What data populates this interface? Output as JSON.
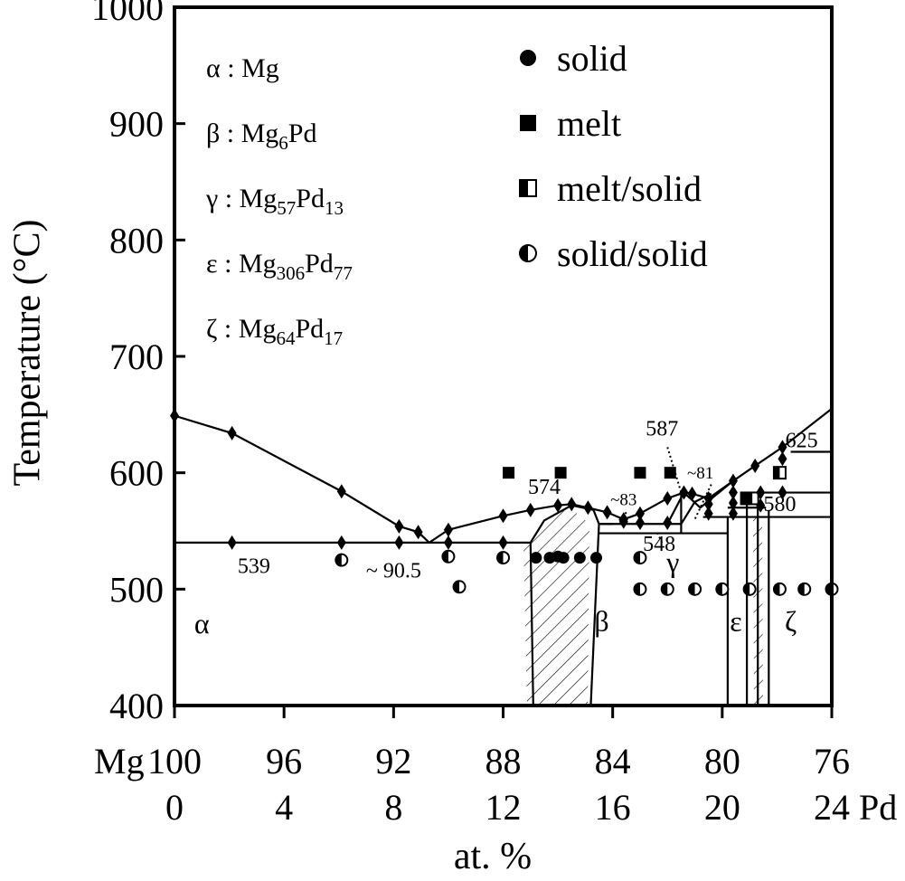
{
  "chart_data": {
    "type": "scatter",
    "title": "",
    "ylabel": "Temperature (°C)",
    "xlabel": "at. %",
    "x_axis_left_label": "Mg",
    "x_axis_right_label": "Pd",
    "x_unit": "at. % Pd",
    "xlim": [
      0,
      24
    ],
    "ylim": [
      400,
      1000
    ],
    "grid": false,
    "y_ticks": [
      "400",
      "500",
      "600",
      "700",
      "800",
      "900",
      "1000"
    ],
    "y_tick_values": [
      400,
      500,
      600,
      700,
      800,
      900,
      1000
    ],
    "x_ticks_mg": [
      "100",
      "96",
      "92",
      "88",
      "84",
      "80",
      "76"
    ],
    "x_ticks_pd": [
      "0",
      "4",
      "8",
      "12",
      "16",
      "20",
      "24"
    ],
    "x_tick_values": [
      0,
      4,
      8,
      12,
      16,
      20,
      24
    ],
    "phase_key": [
      {
        "symbol": "α",
        "formula": "Mg",
        "subs": []
      },
      {
        "symbol": "β",
        "formula": "Mg",
        "subs": [
          {
            "sub": "6",
            "after": "Pd"
          }
        ]
      },
      {
        "symbol": "γ",
        "formula": "Mg",
        "subs": [
          {
            "sub": "57",
            "after": "Pd"
          },
          {
            "sub": "13",
            "after": ""
          }
        ]
      },
      {
        "symbol": "ε",
        "formula": "Mg",
        "subs": [
          {
            "sub": "306",
            "after": "Pd"
          },
          {
            "sub": "77",
            "after": ""
          }
        ]
      },
      {
        "symbol": "ζ",
        "formula": "Mg",
        "subs": [
          {
            "sub": "64",
            "after": "Pd"
          },
          {
            "sub": "17",
            "after": ""
          }
        ]
      }
    ],
    "legend_position": "top-right",
    "legend": [
      {
        "marker": "circle-filled",
        "label": "solid"
      },
      {
        "marker": "square-filled",
        "label": "melt"
      },
      {
        "marker": "square-half",
        "label": "melt/solid"
      },
      {
        "marker": "circle-half",
        "label": "solid/solid"
      }
    ],
    "region_labels": [
      {
        "text": "α",
        "x": 1.0,
        "y": 462
      },
      {
        "text": "β",
        "x": 15.6,
        "y": 464
      },
      {
        "text": "γ",
        "x": 18.2,
        "y": 515
      },
      {
        "text": "ε",
        "x": 20.5,
        "y": 464
      },
      {
        "text": "ζ",
        "x": 22.5,
        "y": 464
      }
    ],
    "annotations": [
      {
        "text": "539",
        "x": 2.9,
        "y": 514
      },
      {
        "text": "~ 90.5",
        "x": 8.0,
        "y": 510
      },
      {
        "text": "574",
        "x": 13.5,
        "y": 582
      },
      {
        "text": "~83",
        "x": 16.4,
        "y": 572
      },
      {
        "text": "548",
        "x": 17.7,
        "y": 533
      },
      {
        "text": "587",
        "x": 17.8,
        "y": 632
      },
      {
        "text": "~81",
        "x": 19.2,
        "y": 595
      },
      {
        "text": "580",
        "x": 22.1,
        "y": 567
      },
      {
        "text": "625",
        "x": 22.9,
        "y": 622
      }
    ],
    "lines": [
      {
        "name": "liquidus",
        "points": [
          [
            0,
            649
          ],
          [
            2.1,
            634
          ],
          [
            6.1,
            584
          ],
          [
            8.2,
            554
          ],
          [
            8.9,
            549
          ],
          [
            9.3,
            540
          ],
          [
            10.0,
            551
          ],
          [
            12.0,
            563
          ],
          [
            13.0,
            568
          ],
          [
            14.0,
            572
          ],
          [
            14.5,
            573
          ],
          [
            15.1,
            570
          ],
          [
            15.8,
            566
          ],
          [
            16.4,
            560
          ],
          [
            17.0,
            565
          ],
          [
            18.0,
            578
          ],
          [
            18.6,
            583
          ],
          [
            18.9,
            582
          ],
          [
            19.5,
            578
          ],
          [
            20.4,
            593
          ],
          [
            21.2,
            606
          ],
          [
            22.2,
            622
          ],
          [
            24,
            655
          ]
        ]
      },
      {
        "name": "eutectic-539",
        "points": [
          [
            0,
            540
          ],
          [
            13.0,
            540
          ]
        ]
      },
      {
        "name": "beta-top",
        "points": [
          [
            13.0,
            540
          ],
          [
            13.5,
            559
          ],
          [
            14.5,
            572
          ],
          [
            15.3,
            568
          ],
          [
            15.5,
            556
          ],
          [
            16.0,
            556
          ]
        ]
      },
      {
        "name": "beta-left",
        "points": [
          [
            13.0,
            540
          ],
          [
            13.1,
            400
          ]
        ]
      },
      {
        "name": "beta-right",
        "points": [
          [
            15.5,
            556
          ],
          [
            15.2,
            400
          ]
        ]
      },
      {
        "name": "peritectic-548",
        "points": [
          [
            15.5,
            548
          ],
          [
            20.2,
            548
          ]
        ]
      },
      {
        "name": "line-556",
        "points": [
          [
            15.5,
            556
          ],
          [
            18.5,
            556
          ]
        ]
      },
      {
        "name": "gamma-top",
        "points": [
          [
            18.0,
            556
          ],
          [
            18.6,
            583
          ],
          [
            19.2,
            570
          ],
          [
            20.4,
            593
          ]
        ]
      },
      {
        "name": "gamma-left",
        "points": [
          [
            18.5,
            583
          ],
          [
            18.5,
            548
          ]
        ]
      },
      {
        "name": "line-562",
        "points": [
          [
            19.3,
            562
          ],
          [
            24,
            562
          ]
        ]
      },
      {
        "name": "line-570",
        "points": [
          [
            20.2,
            570
          ],
          [
            21.6,
            570
          ]
        ]
      },
      {
        "name": "line-580",
        "points": [
          [
            20.8,
            583
          ],
          [
            24,
            583
          ]
        ]
      },
      {
        "name": "line-625",
        "points": [
          [
            22.5,
            618
          ],
          [
            24,
            618
          ]
        ]
      },
      {
        "name": "eps-left",
        "points": [
          [
            20.2,
            562
          ],
          [
            20.2,
            400
          ]
        ]
      },
      {
        "name": "eps-line",
        "points": [
          [
            20.9,
            580
          ],
          [
            20.9,
            400
          ]
        ]
      },
      {
        "name": "zeta-left",
        "points": [
          [
            21.3,
            580
          ],
          [
            21.3,
            400
          ]
        ]
      },
      {
        "name": "zeta-right",
        "points": [
          [
            21.7,
            568
          ],
          [
            21.7,
            400
          ]
        ]
      },
      {
        "name": "gamma-inner",
        "points": [
          [
            18.5,
            556
          ],
          [
            19.0,
            575
          ],
          [
            19.6,
            582
          ]
        ]
      }
    ],
    "dotted_lines": [
      {
        "name": "leader-587",
        "points": [
          [
            18.0,
            622
          ],
          [
            18.5,
            583
          ]
        ]
      },
      {
        "name": "leader-83",
        "points": [
          [
            16.5,
            566
          ],
          [
            16.2,
            558
          ]
        ]
      },
      {
        "name": "leader-81",
        "points": [
          [
            19.6,
            590
          ],
          [
            19.0,
            560
          ]
        ]
      },
      {
        "name": "leader-548",
        "points": [
          [
            17.8,
            540
          ],
          [
            17.6,
            550
          ]
        ]
      }
    ],
    "series": [
      {
        "name": "solid",
        "marker": "circle-filled",
        "points": [
          [
            13.2,
            527
          ],
          [
            13.7,
            527
          ],
          [
            14.2,
            527
          ],
          [
            14.8,
            527
          ],
          [
            15.4,
            527
          ],
          [
            14.0,
            528
          ]
        ]
      },
      {
        "name": "melt",
        "marker": "square-filled",
        "points": [
          [
            12.2,
            600
          ],
          [
            14.1,
            600
          ],
          [
            17.0,
            600
          ],
          [
            18.1,
            600
          ]
        ]
      },
      {
        "name": "melt/solid",
        "marker": "square-half",
        "points": [
          [
            20.9,
            578
          ],
          [
            21.1,
            578
          ],
          [
            22.1,
            600
          ]
        ]
      },
      {
        "name": "solid/solid",
        "marker": "circle-half",
        "points": [
          [
            6.1,
            525
          ],
          [
            10.0,
            528
          ],
          [
            12.0,
            527
          ],
          [
            10.4,
            502
          ],
          [
            17.0,
            527
          ],
          [
            17.0,
            500
          ],
          [
            18.0,
            500
          ],
          [
            19.0,
            500
          ],
          [
            20.0,
            500
          ],
          [
            21.0,
            500
          ],
          [
            22.1,
            500
          ],
          [
            23.0,
            500
          ],
          [
            24.0,
            500
          ]
        ]
      },
      {
        "name": "dta",
        "marker": "diamond",
        "points": [
          [
            0,
            649
          ],
          [
            2.1,
            634
          ],
          [
            6.1,
            584
          ],
          [
            8.2,
            554
          ],
          [
            8.9,
            549
          ],
          [
            10.0,
            551
          ],
          [
            12.0,
            563
          ],
          [
            13.0,
            568
          ],
          [
            14.0,
            572
          ],
          [
            14.5,
            573
          ],
          [
            15.1,
            570
          ],
          [
            15.8,
            566
          ],
          [
            16.4,
            560
          ],
          [
            17.0,
            565
          ],
          [
            18.0,
            578
          ],
          [
            18.6,
            583
          ],
          [
            18.9,
            582
          ],
          [
            19.5,
            578
          ],
          [
            20.4,
            593
          ],
          [
            21.2,
            606
          ],
          [
            22.2,
            622
          ],
          [
            2.1,
            540
          ],
          [
            6.1,
            540
          ],
          [
            8.2,
            540
          ],
          [
            10.0,
            540
          ],
          [
            12.0,
            540
          ],
          [
            16.4,
            558
          ],
          [
            17.0,
            557
          ],
          [
            18.0,
            557
          ],
          [
            19.5,
            573
          ],
          [
            19.5,
            565
          ],
          [
            20.4,
            583
          ],
          [
            20.4,
            574
          ],
          [
            20.4,
            565
          ],
          [
            21.4,
            572
          ],
          [
            21.4,
            583
          ],
          [
            22.2,
            612
          ],
          [
            22.2,
            583
          ]
        ]
      }
    ]
  }
}
